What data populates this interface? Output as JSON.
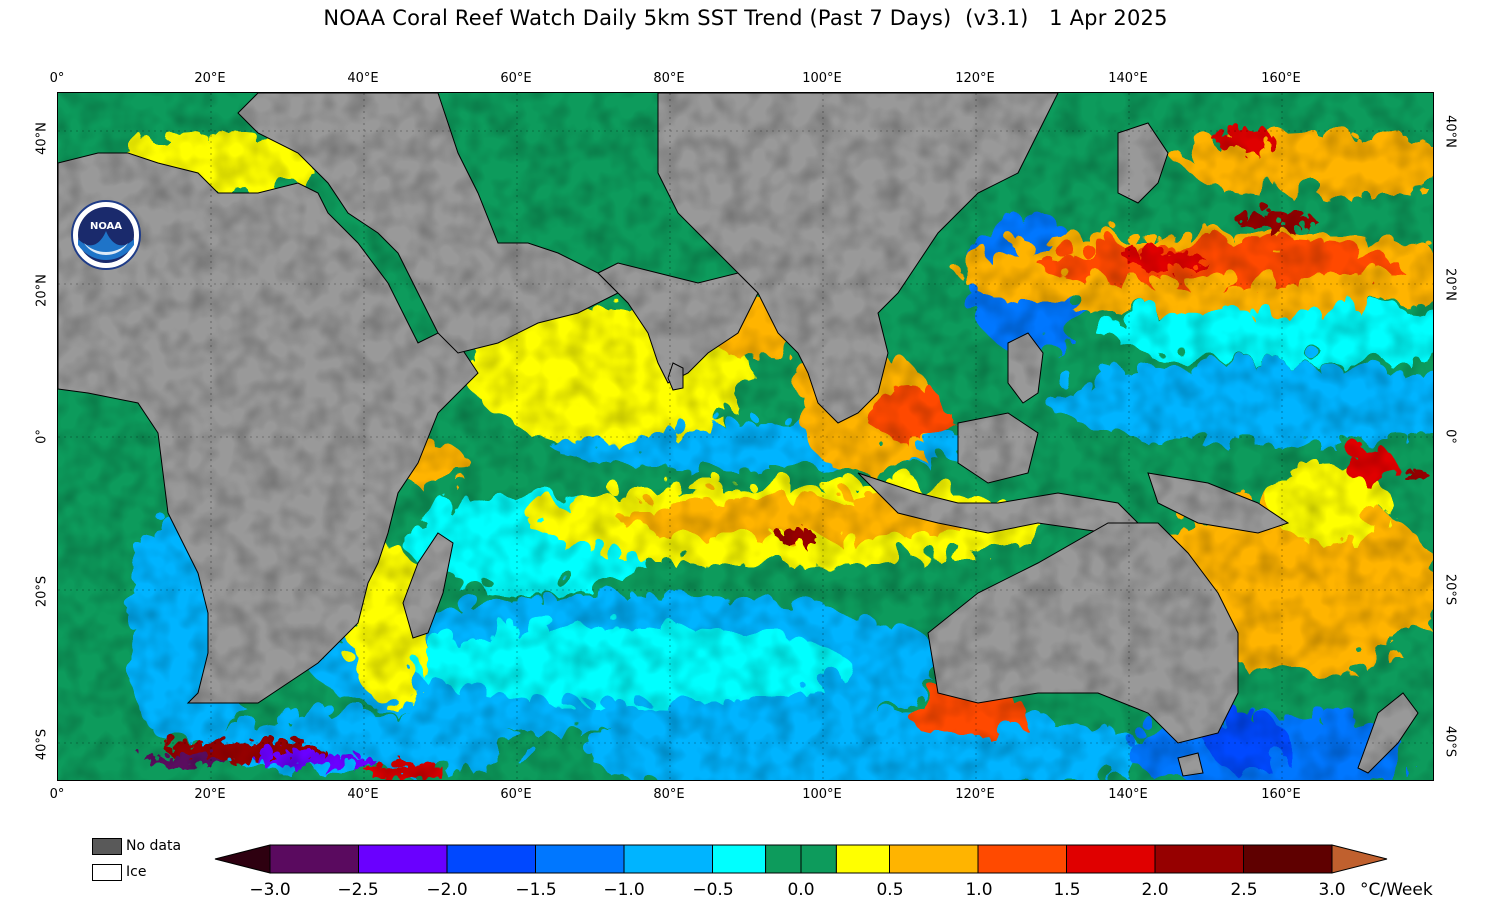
{
  "title": "NOAA Coral Reef Watch Daily 5km SST Trend (Past 7 Days)  (v3.1)   1 Apr 2025",
  "map": {
    "lon_ticks": [
      "0°",
      "20°E",
      "40°E",
      "60°E",
      "80°E",
      "100°E",
      "120°E",
      "140°E",
      "160°E"
    ],
    "lat_ticks": [
      "40°N",
      "20°N",
      "0°",
      "20°S",
      "40°S"
    ],
    "lon_range": [
      0,
      180
    ],
    "lat_range": [
      -45,
      45
    ],
    "land_color": "#999999",
    "ocean_base_color": "#0d9b5c"
  },
  "logo": {
    "text": "NOAA",
    "ring_text": "NATIONAL OCEANIC AND ATMOSPHERIC ADMINISTRATION · U.S. DEPARTMENT OF COMMERCE"
  },
  "legend": {
    "no_data_label": "No data",
    "no_data_color": "#595959",
    "ice_label": "Ice",
    "ice_color": "#ffffff"
  },
  "colorbar": {
    "unit": "°C/Week",
    "tick_labels": [
      "−3.0",
      "−2.5",
      "−2.0",
      "−1.5",
      "−1.0",
      "−0.5",
      "0.0",
      "0.5",
      "1.0",
      "1.5",
      "2.0",
      "2.5",
      "3.0"
    ],
    "under_color": "#2e0010",
    "over_color": "#c0602e",
    "bins": [
      {
        "from": -3.0,
        "to": -2.5,
        "color": "#5a0a5f"
      },
      {
        "from": -2.5,
        "to": -2.0,
        "color": "#6a00ff"
      },
      {
        "from": -2.0,
        "to": -1.5,
        "color": "#0048ff"
      },
      {
        "from": -1.5,
        "to": -1.0,
        "color": "#0077ff"
      },
      {
        "from": -1.0,
        "to": -0.5,
        "color": "#00b4ff"
      },
      {
        "from": -0.5,
        "to": -0.2,
        "color": "#00ffff"
      },
      {
        "from": -0.2,
        "to": 0.0,
        "color": "#0d9b5c"
      },
      {
        "from": 0.0,
        "to": 0.2,
        "color": "#0d9b5c"
      },
      {
        "from": 0.2,
        "to": 0.5,
        "color": "#ffff00"
      },
      {
        "from": 0.5,
        "to": 1.0,
        "color": "#ffb400"
      },
      {
        "from": 1.0,
        "to": 1.5,
        "color": "#ff4a00"
      },
      {
        "from": 1.5,
        "to": 2.0,
        "color": "#e00000"
      },
      {
        "from": 2.0,
        "to": 2.5,
        "color": "#960000"
      },
      {
        "from": 2.5,
        "to": 3.0,
        "color": "#5f0000"
      }
    ]
  }
}
